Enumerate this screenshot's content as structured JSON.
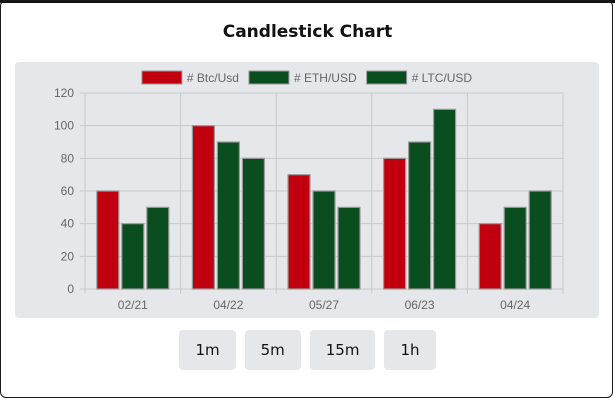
{
  "page": {
    "title": "Candlestick Chart"
  },
  "timeframes": [
    "1m",
    "5m",
    "15m",
    "1h"
  ],
  "chart_data": {
    "type": "bar",
    "categories": [
      "02/21",
      "04/22",
      "05/27",
      "06/23",
      "04/24"
    ],
    "series": [
      {
        "name": "# Btc/Usd",
        "values": [
          60,
          100,
          70,
          80,
          40
        ],
        "color": "#c0000f"
      },
      {
        "name": "# ETH/USD",
        "values": [
          40,
          90,
          60,
          90,
          50
        ],
        "color": "#0a4d1e"
      },
      {
        "name": "# LTC/USD",
        "values": [
          50,
          80,
          50,
          110,
          60
        ],
        "color": "#0a4d1e"
      }
    ],
    "ylim": [
      0,
      120
    ],
    "yticks": [
      0,
      20,
      40,
      60,
      80,
      100,
      120
    ],
    "title": "Candlestick Chart",
    "xlabel": "",
    "ylabel": "",
    "grid": true,
    "legend": "top-center"
  }
}
